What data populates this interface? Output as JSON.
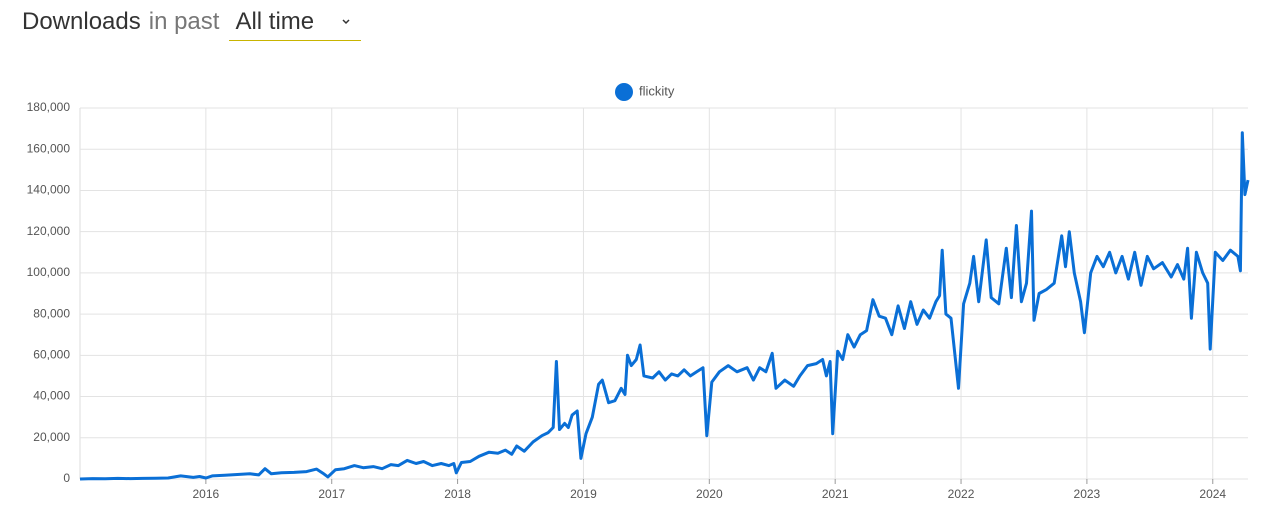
{
  "header": {
    "title": "Downloads",
    "subtitle": "in past",
    "period": "All time"
  },
  "chart_data": {
    "type": "line",
    "x": [
      2015.0,
      2015.1,
      2015.2,
      2015.3,
      2015.4,
      2015.5,
      2015.6,
      2015.7,
      2015.8,
      2015.9,
      2015.95,
      2016.0,
      2016.05,
      2016.15,
      2016.25,
      2016.35,
      2016.42,
      2016.47,
      2016.52,
      2016.6,
      2016.7,
      2016.8,
      2016.88,
      2016.93,
      2016.97,
      2017.03,
      2017.1,
      2017.18,
      2017.25,
      2017.33,
      2017.4,
      2017.47,
      2017.53,
      2017.6,
      2017.67,
      2017.73,
      2017.8,
      2017.87,
      2017.93,
      2017.97,
      2017.99,
      2018.03,
      2018.1,
      2018.17,
      2018.25,
      2018.32,
      2018.38,
      2018.43,
      2018.47,
      2018.53,
      2018.6,
      2018.67,
      2018.72,
      2018.76,
      2018.785,
      2018.81,
      2018.85,
      2018.88,
      2018.91,
      2018.95,
      2018.98,
      2019.02,
      2019.07,
      2019.12,
      2019.15,
      2019.2,
      2019.25,
      2019.3,
      2019.33,
      2019.35,
      2019.38,
      2019.42,
      2019.45,
      2019.48,
      2019.55,
      2019.6,
      2019.65,
      2019.7,
      2019.75,
      2019.8,
      2019.85,
      2019.9,
      2019.95,
      2019.98,
      2020.02,
      2020.08,
      2020.15,
      2020.22,
      2020.3,
      2020.35,
      2020.4,
      2020.45,
      2020.5,
      2020.53,
      2020.6,
      2020.67,
      2020.72,
      2020.78,
      2020.85,
      2020.9,
      2020.93,
      2020.96,
      2020.98,
      2021.02,
      2021.06,
      2021.1,
      2021.15,
      2021.2,
      2021.25,
      2021.3,
      2021.35,
      2021.4,
      2021.45,
      2021.5,
      2021.55,
      2021.6,
      2021.65,
      2021.7,
      2021.75,
      2021.8,
      2021.83,
      2021.85,
      2021.88,
      2021.92,
      2021.98,
      2022.02,
      2022.07,
      2022.1,
      2022.14,
      2022.2,
      2022.24,
      2022.3,
      2022.36,
      2022.4,
      2022.44,
      2022.48,
      2022.52,
      2022.56,
      2022.58,
      2022.62,
      2022.68,
      2022.74,
      2022.8,
      2022.83,
      2022.86,
      2022.9,
      2022.95,
      2022.98,
      2023.03,
      2023.08,
      2023.13,
      2023.18,
      2023.23,
      2023.28,
      2023.33,
      2023.38,
      2023.43,
      2023.48,
      2023.53,
      2023.6,
      2023.67,
      2023.72,
      2023.77,
      2023.8,
      2023.83,
      2023.87,
      2023.92,
      2023.96,
      2023.98,
      2024.02,
      2024.08,
      2024.14,
      2024.2,
      2024.22,
      2024.235,
      2024.255,
      2024.28
    ],
    "series": [
      {
        "name": "flickity",
        "color": "#0a6fd6",
        "values": [
          0,
          200,
          100,
          300,
          200,
          300,
          400,
          500,
          1500,
          800,
          1200,
          500,
          1500,
          1800,
          2200,
          2500,
          2000,
          5000,
          2500,
          3000,
          3200,
          3600,
          4800,
          2800,
          1000,
          4500,
          5000,
          6500,
          5500,
          6000,
          5000,
          7000,
          6500,
          9000,
          7500,
          8500,
          6500,
          7500,
          6500,
          7500,
          3000,
          8000,
          8500,
          11000,
          13000,
          12500,
          14000,
          12000,
          16000,
          13500,
          18000,
          21000,
          22500,
          25000,
          57000,
          24000,
          27000,
          25000,
          31000,
          33000,
          10000,
          22000,
          30000,
          46000,
          48000,
          37000,
          38000,
          44000,
          41000,
          60000,
          55000,
          58000,
          65000,
          50000,
          49000,
          52000,
          48000,
          51000,
          50000,
          53000,
          50000,
          52000,
          54000,
          21000,
          47000,
          52000,
          55000,
          52000,
          54000,
          48000,
          54000,
          52000,
          61000,
          44000,
          48000,
          45000,
          50000,
          55000,
          56000,
          58000,
          50000,
          57000,
          22000,
          62000,
          58000,
          70000,
          64000,
          70000,
          72000,
          87000,
          79000,
          78000,
          70000,
          84000,
          73000,
          86000,
          75000,
          82000,
          78000,
          86000,
          89000,
          111000,
          80000,
          78000,
          44000,
          85000,
          95000,
          108000,
          86000,
          116000,
          88000,
          85000,
          112000,
          88000,
          123000,
          86000,
          95000,
          130000,
          77000,
          90000,
          92000,
          95000,
          118000,
          103000,
          120000,
          100000,
          86000,
          71000,
          100000,
          108000,
          103000,
          110000,
          100000,
          108000,
          97000,
          110000,
          94000,
          108000,
          102000,
          105000,
          98000,
          104000,
          97000,
          112000,
          78000,
          110000,
          100000,
          95000,
          63000,
          110000,
          106000,
          111000,
          108000,
          101000,
          168000,
          138000,
          145000
        ]
      }
    ],
    "xlim": [
      2015.0,
      2024.28
    ],
    "xticks": [
      2016,
      2017,
      2018,
      2019,
      2020,
      2021,
      2022,
      2023,
      2024
    ],
    "ylim": [
      0,
      180000
    ],
    "yticks": [
      0,
      {
        "value": 20000,
        "label": "20,000"
      },
      {
        "value": 40000,
        "label": "40,000"
      },
      {
        "value": 60000,
        "label": "60,000"
      },
      {
        "value": 80000,
        "label": "80,000"
      },
      {
        "value": 100000,
        "label": "100,000"
      },
      {
        "value": 120000,
        "label": "120,000"
      },
      {
        "value": 140000,
        "label": "140,000"
      },
      {
        "value": 160000,
        "label": "160,000"
      },
      {
        "value": 180000,
        "label": "180,000"
      }
    ],
    "grid": true,
    "legend": "top"
  }
}
